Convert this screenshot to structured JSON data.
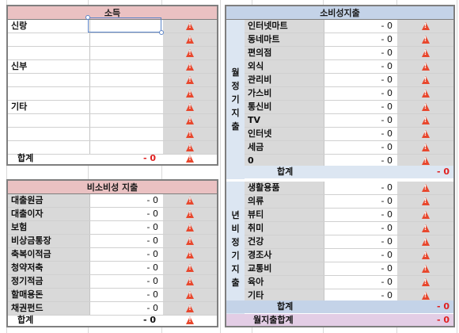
{
  "colors": {
    "income_header": "#eac1c2",
    "consumption_header": "#c4d3e8",
    "consumption_side": "#dce6f2",
    "nonconsumption_header": "#eac1c2",
    "monthly_total_bg": "#e3cde5",
    "warn": "#e8472d",
    "total_value": "#e02020",
    "label_gray": "#d9d9d9"
  },
  "income": {
    "title": "소득",
    "rows": [
      {
        "label": "신랑",
        "value": "",
        "warn_icon": "warning-icon"
      },
      {
        "label": "",
        "value": "",
        "warn_icon": "warning-icon"
      },
      {
        "label": "",
        "value": "",
        "warn_icon": "warning-icon"
      },
      {
        "label": "신부",
        "value": "",
        "warn_icon": "warning-icon"
      },
      {
        "label": "",
        "value": "",
        "warn_icon": "warning-icon"
      },
      {
        "label": "",
        "value": "",
        "warn_icon": "warning-icon"
      },
      {
        "label": "기타",
        "value": "",
        "warn_icon": "warning-icon"
      },
      {
        "label": "",
        "value": "",
        "warn_icon": "warning-icon"
      },
      {
        "label": "",
        "value": "",
        "warn_icon": "warning-icon"
      },
      {
        "label": "",
        "value": "",
        "warn_icon": "warning-icon"
      }
    ],
    "total": {
      "label": "합계",
      "value": "- 0",
      "warn_icon": "warning-icon"
    }
  },
  "consumption": {
    "title": "소비성지출",
    "monthly": {
      "side_label": [
        "월",
        "정",
        "기",
        "지",
        "출"
      ],
      "rows": [
        {
          "label": "인터넷마트",
          "value": "- 0"
        },
        {
          "label": "동네마트",
          "value": "- 0"
        },
        {
          "label": "편의점",
          "value": "- 0"
        },
        {
          "label": "외식",
          "value": "- 0"
        },
        {
          "label": "관리비",
          "value": "- 0"
        },
        {
          "label": "가스비",
          "value": "- 0"
        },
        {
          "label": "통신비",
          "value": "- 0"
        },
        {
          "label": "TV",
          "value": "- 0"
        },
        {
          "label": "인터넷",
          "value": "- 0"
        },
        {
          "label": "세금",
          "value": "- 0"
        },
        {
          "label": "0",
          "value": "- 0"
        }
      ],
      "total": {
        "label": "합계",
        "value": "- 0"
      }
    },
    "yearly": {
      "side_label": [
        "년",
        "비",
        "정",
        "기",
        "지",
        "출"
      ],
      "rows": [
        {
          "label": "생활용품",
          "value": "- 0"
        },
        {
          "label": "의류",
          "value": "- 0"
        },
        {
          "label": "뷰티",
          "value": "- 0"
        },
        {
          "label": "취미",
          "value": "- 0"
        },
        {
          "label": "건강",
          "value": "- 0"
        },
        {
          "label": "경조사",
          "value": "- 0"
        },
        {
          "label": "교통비",
          "value": "- 0"
        },
        {
          "label": "육아",
          "value": "- 0"
        },
        {
          "label": "기타",
          "value": "- 0"
        }
      ],
      "total": {
        "label": "합계",
        "value": "- 0"
      }
    },
    "monthly_total": {
      "label": "월지출합계",
      "value": "- 0"
    }
  },
  "nonconsumption": {
    "title": "비소비성 지출",
    "rows": [
      {
        "label": "대출원금",
        "value": "- 0"
      },
      {
        "label": "대출이자",
        "value": "- 0"
      },
      {
        "label": "보험",
        "value": "- 0"
      },
      {
        "label": "비상금통장",
        "value": "- 0"
      },
      {
        "label": "축복이적금",
        "value": "- 0"
      },
      {
        "label": "청약저축",
        "value": "- 0"
      },
      {
        "label": "정기적금",
        "value": "- 0"
      },
      {
        "label": "할매용돈",
        "value": "- 0"
      },
      {
        "label": "채권펀드",
        "value": "- 0"
      }
    ],
    "total": {
      "label": "합계",
      "value": "- 0"
    }
  }
}
